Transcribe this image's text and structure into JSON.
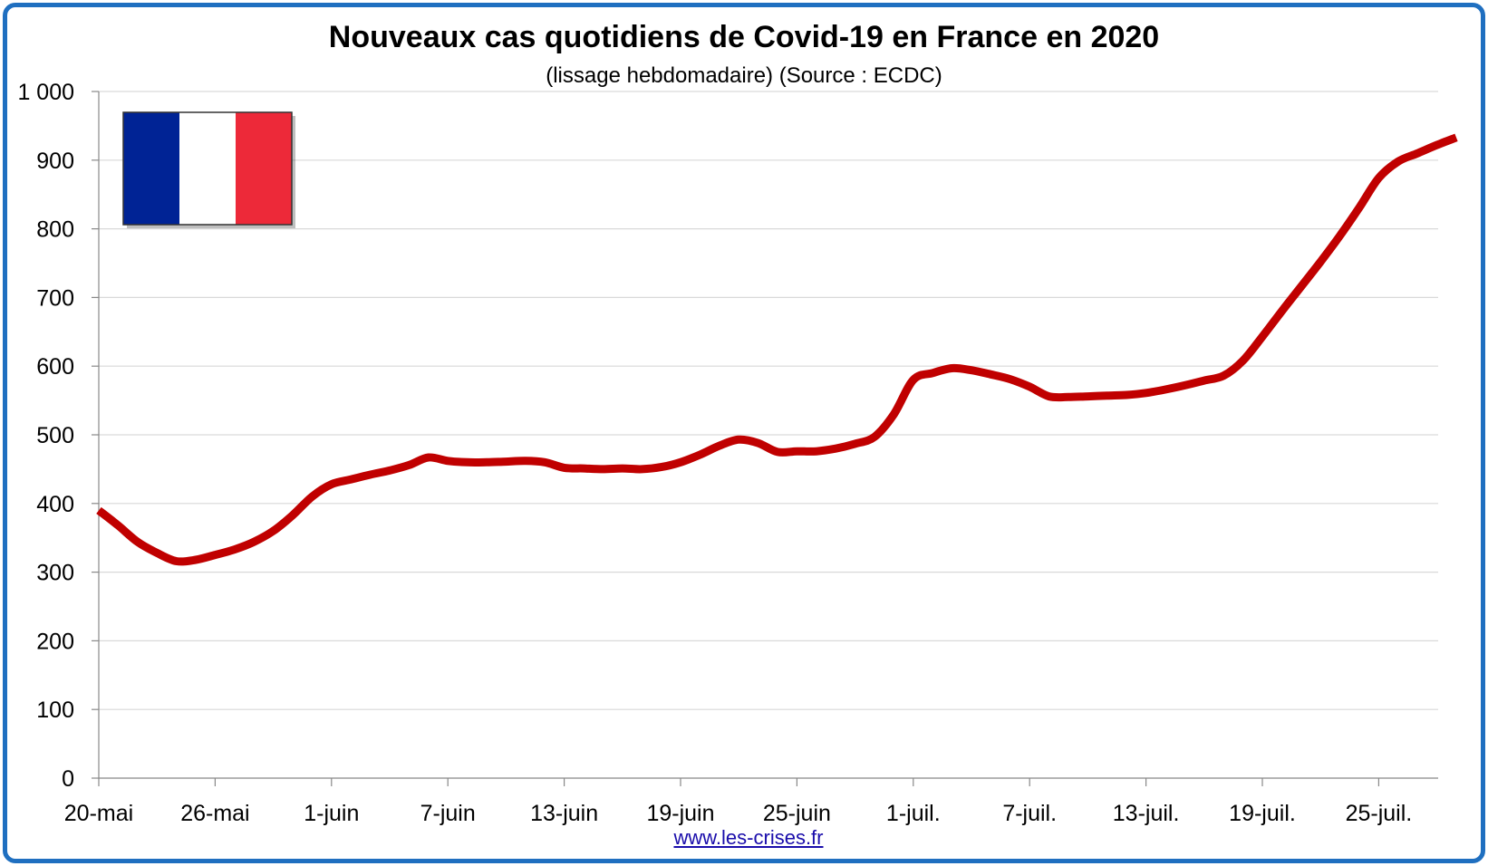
{
  "colors": {
    "frame": "#1f6fc0",
    "line": "#c00000",
    "grid": "#d9d9d9",
    "flag_blue": "#002395",
    "flag_white": "#ffffff",
    "flag_red": "#ed2939"
  },
  "footer": {
    "link_text": "www.les-crises.fr"
  },
  "chart_data": {
    "type": "line",
    "title": "Nouveaux cas quotidiens de Covid-19 en France en 2020",
    "subtitle": "(lissage hebdomadaire) (Source : ECDC)",
    "xlabel": "",
    "ylabel": "",
    "ylim": [
      0,
      1000
    ],
    "yticks": [
      0,
      100,
      200,
      300,
      400,
      500,
      600,
      700,
      800,
      900,
      1000
    ],
    "ytick_labels": [
      "0",
      "100",
      "200",
      "300",
      "400",
      "500",
      "600",
      "700",
      "800",
      "900",
      "1 000"
    ],
    "xtick_labels": [
      "20-mai",
      "26-mai",
      "1-juin",
      "7-juin",
      "13-juin",
      "19-juin",
      "25-juin",
      "1-juil.",
      "7-juil.",
      "13-juil.",
      "19-juil.",
      "25-juil."
    ],
    "grid": true,
    "legend": "none",
    "decoration": "french-flag",
    "series": [
      {
        "color": "#c00000",
        "x_start": "20-mai",
        "step_days": 1,
        "values": [
          390,
          368,
          344,
          328,
          316,
          318,
          325,
          333,
          344,
          360,
          383,
          410,
          428,
          435,
          442,
          448,
          456,
          467,
          462,
          460,
          460,
          461,
          462,
          460,
          452,
          451,
          450,
          451,
          450,
          453,
          460,
          471,
          484,
          493,
          488,
          475,
          476,
          476,
          480,
          487,
          497,
          530,
          580,
          590,
          597,
          594,
          588,
          581,
          570,
          556,
          555,
          556,
          557,
          558,
          561,
          566,
          572,
          579,
          586,
          608,
          643,
          680,
          716,
          752,
          790,
          831,
          874,
          898,
          910,
          922,
          933
        ]
      }
    ]
  }
}
